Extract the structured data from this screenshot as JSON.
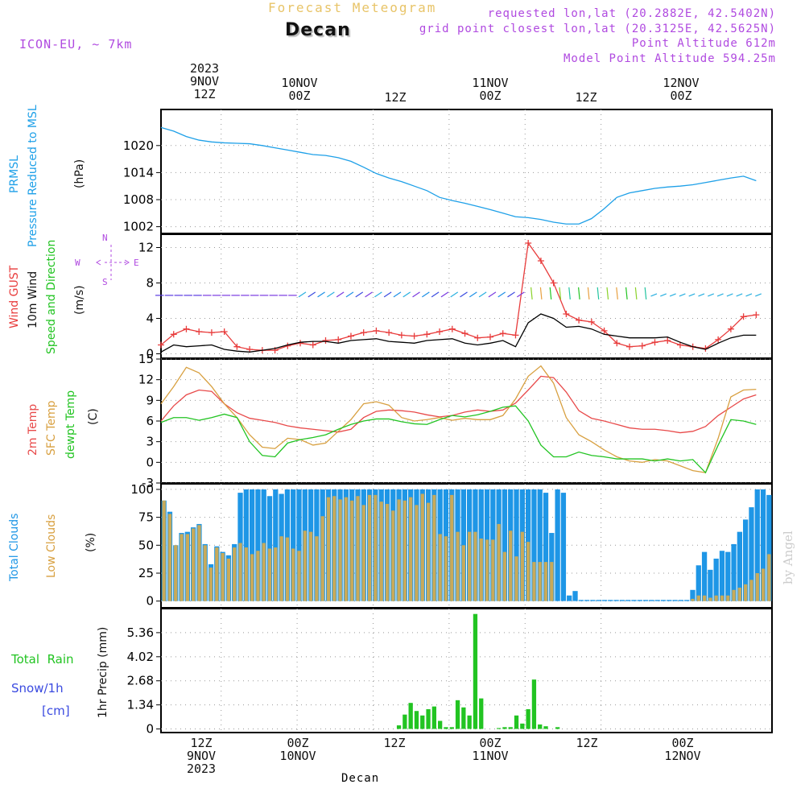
{
  "header": {
    "title_top": "Forecast Meteogram",
    "station": "Decan",
    "model": "ICON-EU, ~ 7km",
    "requested": "requested lon,lat (20.2882E, 42.5402N)",
    "gridpoint": "grid point closest lon,lat (20.3125E, 42.5625N)",
    "altitude": "Point Altitude 612m",
    "model_altitude": "Model Point Altitude 594.25m"
  },
  "time_axis": {
    "ticks_top": [
      {
        "lines": [
          "2023",
          "9NOV",
          "12Z"
        ]
      },
      {
        "lines": [
          "10NOV",
          "00Z"
        ]
      },
      {
        "lines": [
          "12Z"
        ]
      },
      {
        "lines": [
          "11NOV",
          "00Z"
        ]
      },
      {
        "lines": [
          "12Z"
        ]
      },
      {
        "lines": [
          "12NOV",
          "00Z"
        ]
      }
    ],
    "ticks_bottom": [
      {
        "lines": [
          "12Z",
          "9NOV",
          "2023"
        ]
      },
      {
        "lines": [
          "00Z",
          "10NOV"
        ]
      },
      {
        "lines": [
          "12Z"
        ]
      },
      {
        "lines": [
          "00Z",
          "11NOV"
        ]
      },
      {
        "lines": [
          "12Z"
        ]
      },
      {
        "lines": [
          "00Z",
          "12NOV"
        ]
      }
    ],
    "footer_station": "Decan",
    "tick_hours": [
      12,
      24,
      36,
      48,
      60,
      72
    ]
  },
  "labels": {
    "pressure": {
      "line1": "PRMSL",
      "line2": "Pressure Reduced to MSL",
      "unit": "(hPa)"
    },
    "wind": {
      "gust": "Wind GUST",
      "w10": "10m Wind",
      "speed_dir": "Speed and Direction",
      "unit": "(m/s)",
      "compass": {
        "n": "N",
        "s": "S",
        "w": "W",
        "e": "E"
      }
    },
    "temp": {
      "t2m": "2m Temp",
      "sfc": "SFC Temp",
      "dew": "dewpt Temp",
      "unit": "(C)"
    },
    "clouds": {
      "total": "Total Clouds",
      "low": "Low Clouds",
      "unit": "(%)"
    },
    "precip": {
      "rain": "Total  Rain",
      "snow": "Snow/1h",
      "snow_unit": "[cm]",
      "unit": "1hr Precip (mm)"
    },
    "signature": "by Angel"
  },
  "colors": {
    "pressure": "#1ea0e8",
    "gust": "#e83c3c",
    "wind10": "#000000",
    "t2m": "#e84a4a",
    "sfc": "#d8a040",
    "dew": "#22c422",
    "total_cloud": "#1e96e6",
    "low_cloud": "#c8aa5a",
    "rain": "#22c422",
    "snow": "#3a4ae0",
    "purple": "#b04ae0"
  },
  "chart_data": [
    {
      "type": "line",
      "name": "pressure",
      "ylabel": "(hPa)",
      "ylim": [
        1000.5,
        1028
      ],
      "yticks": [
        1002,
        1008,
        1014,
        1020
      ],
      "x_hours": [
        0,
        2,
        4,
        6,
        8,
        10,
        12,
        14,
        16,
        18,
        20,
        22,
        24,
        26,
        28,
        30,
        32,
        34,
        36,
        38,
        40,
        42,
        44,
        46,
        48,
        50,
        52,
        54,
        56,
        58,
        60,
        62,
        64,
        66,
        68,
        70,
        72,
        74,
        76,
        78,
        80,
        82,
        84,
        86,
        88,
        90,
        92,
        94
      ],
      "series": [
        {
          "name": "PRMSL",
          "values": [
            1024.0,
            1023.2,
            1022.0,
            1021.2,
            1020.8,
            1020.6,
            1020.5,
            1020.4,
            1020.0,
            1019.5,
            1019.0,
            1018.5,
            1018.0,
            1017.8,
            1017.3,
            1016.5,
            1015.2,
            1013.8,
            1012.8,
            1012.0,
            1011.0,
            1010.0,
            1008.5,
            1007.8,
            1007.2,
            1006.5,
            1005.8,
            1005.0,
            1004.2,
            1004.0,
            1003.6,
            1003.0,
            1002.6,
            1002.6,
            1003.8,
            1006.0,
            1008.5,
            1009.5,
            1010.0,
            1010.5,
            1010.8,
            1011.0,
            1011.3,
            1011.8,
            1012.3,
            1012.8,
            1013.2,
            1012.2
          ]
        }
      ]
    },
    {
      "type": "line",
      "name": "wind",
      "ylabel": "(m/s)",
      "ylim": [
        -0.5,
        13.5
      ],
      "yticks": [
        0,
        4,
        8,
        12
      ],
      "x_hours": [
        0,
        2,
        4,
        6,
        8,
        10,
        12,
        14,
        16,
        18,
        20,
        22,
        24,
        26,
        28,
        30,
        32,
        34,
        36,
        38,
        40,
        42,
        44,
        46,
        48,
        50,
        52,
        54,
        56,
        58,
        60,
        62,
        64,
        66,
        68,
        70,
        72,
        74,
        76,
        78,
        80,
        82,
        84,
        86,
        88,
        90,
        92,
        94
      ],
      "series": [
        {
          "name": "Wind GUST",
          "values": [
            1.0,
            2.2,
            2.8,
            2.5,
            2.4,
            2.5,
            0.8,
            0.5,
            0.4,
            0.4,
            0.9,
            1.2,
            1.0,
            1.5,
            1.6,
            2.0,
            2.4,
            2.6,
            2.4,
            2.1,
            2.0,
            2.2,
            2.5,
            2.8,
            2.3,
            1.8,
            1.9,
            2.3,
            2.1,
            12.5,
            10.5,
            8.0,
            4.5,
            3.8,
            3.6,
            2.6,
            1.2,
            0.8,
            0.9,
            1.3,
            1.5,
            1.0,
            0.8,
            0.6,
            1.6,
            2.8,
            4.2,
            4.4
          ]
        },
        {
          "name": "10m Wind",
          "values": [
            0.2,
            1.0,
            0.8,
            0.9,
            1.0,
            0.5,
            0.3,
            0.2,
            0.4,
            0.6,
            1.0,
            1.3,
            1.4,
            1.4,
            1.2,
            1.5,
            1.6,
            1.7,
            1.4,
            1.3,
            1.2,
            1.5,
            1.6,
            1.7,
            1.2,
            1.0,
            1.2,
            1.5,
            0.8,
            3.5,
            4.5,
            4.0,
            3.0,
            3.1,
            2.8,
            2.2,
            2.0,
            1.8,
            1.8,
            1.8,
            1.9,
            1.3,
            0.8,
            0.5,
            1.2,
            1.8,
            2.1,
            2.1
          ]
        }
      ],
      "arrow_y": 6.6
    },
    {
      "type": "line",
      "name": "temperature",
      "ylabel": "(C)",
      "ylim": [
        -3,
        15
      ],
      "yticks": [
        -3,
        0,
        3,
        6,
        9,
        12,
        15
      ],
      "x_hours": [
        0,
        2,
        4,
        6,
        8,
        10,
        12,
        14,
        16,
        18,
        20,
        22,
        24,
        26,
        28,
        30,
        32,
        34,
        36,
        38,
        40,
        42,
        44,
        46,
        48,
        50,
        52,
        54,
        56,
        58,
        60,
        62,
        64,
        66,
        68,
        70,
        72,
        74,
        76,
        78,
        80,
        82,
        84,
        86,
        88,
        90,
        92,
        94
      ],
      "series": [
        {
          "name": "2m Temp",
          "values": [
            6.0,
            8.2,
            9.8,
            10.5,
            10.3,
            8.5,
            7.2,
            6.4,
            6.1,
            5.8,
            5.3,
            5.0,
            4.8,
            4.6,
            4.4,
            4.8,
            6.5,
            7.4,
            7.6,
            7.5,
            7.3,
            6.9,
            6.6,
            6.8,
            7.3,
            7.6,
            7.4,
            7.6,
            8.6,
            10.5,
            12.5,
            12.3,
            10.2,
            7.5,
            6.4,
            6.0,
            5.5,
            5.0,
            4.8,
            4.8,
            4.6,
            4.3,
            4.5,
            5.2,
            6.8,
            8.0,
            9.2,
            9.8
          ]
        },
        {
          "name": "SFC Temp",
          "values": [
            8.5,
            11.0,
            13.8,
            13.0,
            11.0,
            8.5,
            6.5,
            4.0,
            2.2,
            2.0,
            3.5,
            3.3,
            2.5,
            2.8,
            4.5,
            6.2,
            8.5,
            8.8,
            8.3,
            6.5,
            6.0,
            6.2,
            6.5,
            6.1,
            6.4,
            6.2,
            6.2,
            6.8,
            9.2,
            12.5,
            14.0,
            11.5,
            6.5,
            4.0,
            3.0,
            1.8,
            0.8,
            0.2,
            0.0,
            0.4,
            0.2,
            -0.5,
            -1.2,
            -1.5,
            3.5,
            9.5,
            10.5,
            10.6
          ]
        },
        {
          "name": "dewpt Temp",
          "values": [
            5.8,
            6.5,
            6.5,
            6.1,
            6.5,
            7.0,
            6.5,
            3.0,
            1.0,
            0.8,
            2.8,
            3.3,
            3.6,
            4.0,
            4.8,
            5.5,
            6.0,
            6.3,
            6.3,
            5.9,
            5.6,
            5.5,
            6.2,
            6.8,
            6.6,
            6.9,
            7.4,
            8.0,
            8.2,
            6.0,
            2.5,
            0.8,
            0.8,
            1.5,
            1.0,
            0.8,
            0.5,
            0.5,
            0.5,
            0.2,
            0.5,
            0.2,
            0.4,
            -1.5,
            2.5,
            6.2,
            6.0,
            5.5
          ]
        }
      ]
    },
    {
      "type": "bar",
      "name": "clouds",
      "ylabel": "(%)",
      "ylim": [
        -6,
        105
      ],
      "yticks": [
        0,
        25,
        50,
        75,
        100
      ],
      "series": [
        {
          "name": "Total Clouds",
          "values": [
            90,
            80,
            50,
            61,
            62,
            66,
            69,
            51,
            33,
            49,
            44,
            41,
            51,
            97,
            100,
            100,
            100,
            100,
            94,
            100,
            96,
            100,
            100,
            100,
            100,
            100,
            100,
            100,
            100,
            100,
            100,
            100,
            100,
            100,
            100,
            100,
            100,
            100,
            100,
            100,
            100,
            100,
            100,
            100,
            100,
            100,
            100,
            100,
            100,
            100,
            100,
            100,
            100,
            100,
            100,
            100,
            100,
            100,
            100,
            100,
            100,
            100,
            100,
            100,
            100,
            97,
            61,
            100,
            97,
            5,
            9,
            1,
            1,
            1,
            1,
            1,
            1,
            1,
            1,
            1,
            1,
            1,
            1,
            1,
            1,
            1,
            1,
            1,
            1,
            1,
            10,
            32,
            44,
            28,
            38,
            45,
            44,
            51,
            62,
            73,
            84,
            100,
            100,
            95
          ]
        },
        {
          "name": "Low Clouds",
          "values": [
            90,
            78,
            50,
            60,
            60,
            65,
            68,
            50,
            30,
            48,
            43,
            38,
            48,
            52,
            48,
            42,
            45,
            52,
            47,
            48,
            58,
            57,
            47,
            45,
            63,
            62,
            58,
            76,
            93,
            94,
            91,
            93,
            90,
            94,
            86,
            95,
            95,
            89,
            87,
            81,
            91,
            90,
            93,
            86,
            96,
            88,
            95,
            60,
            58,
            95,
            62,
            50,
            62,
            62,
            56,
            55,
            55,
            69,
            44,
            63,
            40,
            62,
            53,
            35,
            35,
            35,
            35,
            0,
            0,
            0,
            0,
            0,
            0,
            0,
            0,
            0,
            0,
            0,
            0,
            0,
            0,
            0,
            0,
            0,
            0,
            0,
            0,
            0,
            0,
            0,
            2,
            5,
            5,
            3,
            5,
            5,
            5,
            10,
            12,
            15,
            19,
            25,
            29,
            42
          ]
        }
      ]
    },
    {
      "type": "bar",
      "name": "precip",
      "ylabel": "1hr Precip (mm)",
      "ylim": [
        -0.2,
        6.7
      ],
      "yticks": [
        0,
        1.34,
        2.68,
        4.02,
        5.36
      ],
      "ytick_labels": [
        "0",
        "1.34",
        "2.68",
        "4.02",
        "5.36"
      ],
      "series": [
        {
          "name": "Total Rain",
          "values": [
            0,
            0,
            0,
            0,
            0,
            0,
            0,
            0,
            0,
            0,
            0,
            0,
            0,
            0,
            0,
            0,
            0,
            0,
            0,
            0,
            0,
            0,
            0,
            0,
            0,
            0,
            0,
            0,
            0,
            0,
            0,
            0,
            0,
            0,
            0,
            0,
            0,
            0,
            0,
            0,
            0.2,
            0.8,
            1.45,
            1.0,
            0.75,
            1.1,
            1.25,
            0.45,
            0.1,
            0.1,
            1.6,
            1.2,
            0.75,
            6.4,
            1.7,
            0,
            0,
            0.05,
            0.1,
            0.1,
            0.75,
            0.3,
            1.1,
            2.75,
            0.25,
            0.15,
            0,
            0.1,
            0,
            0,
            0,
            0,
            0,
            0,
            0,
            0,
            0,
            0,
            0,
            0,
            0,
            0,
            0,
            0,
            0,
            0,
            0,
            0,
            0,
            0,
            0,
            0,
            0,
            0,
            0,
            0,
            0,
            0,
            0,
            0,
            0,
            0,
            0,
            0
          ]
        },
        {
          "name": "Snow/1h",
          "values": [
            0
          ]
        }
      ]
    }
  ]
}
